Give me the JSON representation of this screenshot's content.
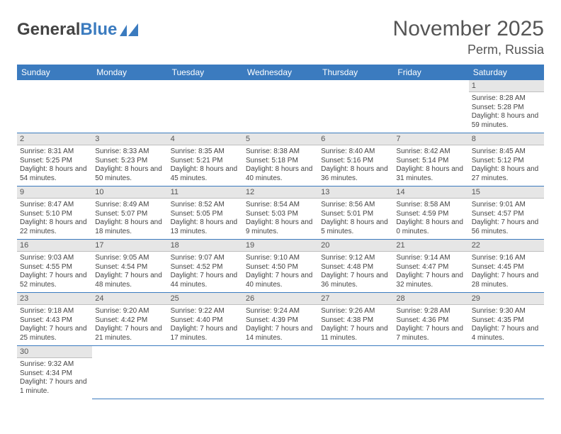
{
  "logo": {
    "text1": "General",
    "text2": "Blue"
  },
  "title": "November 2025",
  "location": "Perm, Russia",
  "colors": {
    "header_bg": "#3b7bbf",
    "header_text": "#ffffff",
    "daynum_bg": "#e6e6e6",
    "daynum_border": "#bfbfbf",
    "row_border": "#3b7bbf",
    "text": "#444444"
  },
  "weekdays": [
    "Sunday",
    "Monday",
    "Tuesday",
    "Wednesday",
    "Thursday",
    "Friday",
    "Saturday"
  ],
  "weeks": [
    [
      null,
      null,
      null,
      null,
      null,
      null,
      {
        "n": "1",
        "sr": "Sunrise: 8:28 AM",
        "ss": "Sunset: 5:28 PM",
        "dl": "Daylight: 8 hours and 59 minutes."
      }
    ],
    [
      {
        "n": "2",
        "sr": "Sunrise: 8:31 AM",
        "ss": "Sunset: 5:25 PM",
        "dl": "Daylight: 8 hours and 54 minutes."
      },
      {
        "n": "3",
        "sr": "Sunrise: 8:33 AM",
        "ss": "Sunset: 5:23 PM",
        "dl": "Daylight: 8 hours and 50 minutes."
      },
      {
        "n": "4",
        "sr": "Sunrise: 8:35 AM",
        "ss": "Sunset: 5:21 PM",
        "dl": "Daylight: 8 hours and 45 minutes."
      },
      {
        "n": "5",
        "sr": "Sunrise: 8:38 AM",
        "ss": "Sunset: 5:18 PM",
        "dl": "Daylight: 8 hours and 40 minutes."
      },
      {
        "n": "6",
        "sr": "Sunrise: 8:40 AM",
        "ss": "Sunset: 5:16 PM",
        "dl": "Daylight: 8 hours and 36 minutes."
      },
      {
        "n": "7",
        "sr": "Sunrise: 8:42 AM",
        "ss": "Sunset: 5:14 PM",
        "dl": "Daylight: 8 hours and 31 minutes."
      },
      {
        "n": "8",
        "sr": "Sunrise: 8:45 AM",
        "ss": "Sunset: 5:12 PM",
        "dl": "Daylight: 8 hours and 27 minutes."
      }
    ],
    [
      {
        "n": "9",
        "sr": "Sunrise: 8:47 AM",
        "ss": "Sunset: 5:10 PM",
        "dl": "Daylight: 8 hours and 22 minutes."
      },
      {
        "n": "10",
        "sr": "Sunrise: 8:49 AM",
        "ss": "Sunset: 5:07 PM",
        "dl": "Daylight: 8 hours and 18 minutes."
      },
      {
        "n": "11",
        "sr": "Sunrise: 8:52 AM",
        "ss": "Sunset: 5:05 PM",
        "dl": "Daylight: 8 hours and 13 minutes."
      },
      {
        "n": "12",
        "sr": "Sunrise: 8:54 AM",
        "ss": "Sunset: 5:03 PM",
        "dl": "Daylight: 8 hours and 9 minutes."
      },
      {
        "n": "13",
        "sr": "Sunrise: 8:56 AM",
        "ss": "Sunset: 5:01 PM",
        "dl": "Daylight: 8 hours and 5 minutes."
      },
      {
        "n": "14",
        "sr": "Sunrise: 8:58 AM",
        "ss": "Sunset: 4:59 PM",
        "dl": "Daylight: 8 hours and 0 minutes."
      },
      {
        "n": "15",
        "sr": "Sunrise: 9:01 AM",
        "ss": "Sunset: 4:57 PM",
        "dl": "Daylight: 7 hours and 56 minutes."
      }
    ],
    [
      {
        "n": "16",
        "sr": "Sunrise: 9:03 AM",
        "ss": "Sunset: 4:55 PM",
        "dl": "Daylight: 7 hours and 52 minutes."
      },
      {
        "n": "17",
        "sr": "Sunrise: 9:05 AM",
        "ss": "Sunset: 4:54 PM",
        "dl": "Daylight: 7 hours and 48 minutes."
      },
      {
        "n": "18",
        "sr": "Sunrise: 9:07 AM",
        "ss": "Sunset: 4:52 PM",
        "dl": "Daylight: 7 hours and 44 minutes."
      },
      {
        "n": "19",
        "sr": "Sunrise: 9:10 AM",
        "ss": "Sunset: 4:50 PM",
        "dl": "Daylight: 7 hours and 40 minutes."
      },
      {
        "n": "20",
        "sr": "Sunrise: 9:12 AM",
        "ss": "Sunset: 4:48 PM",
        "dl": "Daylight: 7 hours and 36 minutes."
      },
      {
        "n": "21",
        "sr": "Sunrise: 9:14 AM",
        "ss": "Sunset: 4:47 PM",
        "dl": "Daylight: 7 hours and 32 minutes."
      },
      {
        "n": "22",
        "sr": "Sunrise: 9:16 AM",
        "ss": "Sunset: 4:45 PM",
        "dl": "Daylight: 7 hours and 28 minutes."
      }
    ],
    [
      {
        "n": "23",
        "sr": "Sunrise: 9:18 AM",
        "ss": "Sunset: 4:43 PM",
        "dl": "Daylight: 7 hours and 25 minutes."
      },
      {
        "n": "24",
        "sr": "Sunrise: 9:20 AM",
        "ss": "Sunset: 4:42 PM",
        "dl": "Daylight: 7 hours and 21 minutes."
      },
      {
        "n": "25",
        "sr": "Sunrise: 9:22 AM",
        "ss": "Sunset: 4:40 PM",
        "dl": "Daylight: 7 hours and 17 minutes."
      },
      {
        "n": "26",
        "sr": "Sunrise: 9:24 AM",
        "ss": "Sunset: 4:39 PM",
        "dl": "Daylight: 7 hours and 14 minutes."
      },
      {
        "n": "27",
        "sr": "Sunrise: 9:26 AM",
        "ss": "Sunset: 4:38 PM",
        "dl": "Daylight: 7 hours and 11 minutes."
      },
      {
        "n": "28",
        "sr": "Sunrise: 9:28 AM",
        "ss": "Sunset: 4:36 PM",
        "dl": "Daylight: 7 hours and 7 minutes."
      },
      {
        "n": "29",
        "sr": "Sunrise: 9:30 AM",
        "ss": "Sunset: 4:35 PM",
        "dl": "Daylight: 7 hours and 4 minutes."
      }
    ],
    [
      {
        "n": "30",
        "sr": "Sunrise: 9:32 AM",
        "ss": "Sunset: 4:34 PM",
        "dl": "Daylight: 7 hours and 1 minute."
      },
      null,
      null,
      null,
      null,
      null,
      null
    ]
  ]
}
